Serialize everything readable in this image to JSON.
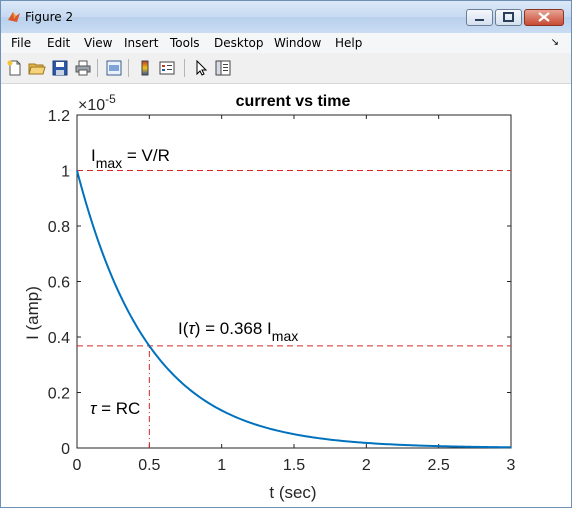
{
  "window": {
    "title": "Figure 2"
  },
  "menu": [
    "File",
    "Edit",
    "View",
    "Insert",
    "Tools",
    "Desktop",
    "Window",
    "Help"
  ],
  "toolbar_icons": [
    "new-figure-icon",
    "open-file-icon",
    "save-icon",
    "print-icon",
    "print-preview-icon",
    "colorbar-icon",
    "legend-icon",
    "pointer-icon",
    "property-editor-icon"
  ],
  "chart_data": {
    "type": "line",
    "title": "current vs time",
    "xlabel": "t (sec)",
    "ylabel": "I (amp)",
    "xlim": [
      0,
      3
    ],
    "ylim": [
      0,
      1.2
    ],
    "y_exponent_label": "×10",
    "y_exponent_power": "-5",
    "xticks": [
      "0",
      "0.5",
      "1",
      "1.5",
      "2",
      "2.5",
      "3"
    ],
    "yticks": [
      "0",
      "0.2",
      "0.4",
      "0.6",
      "0.8",
      "1",
      "1.2"
    ],
    "series": [
      {
        "color": "#0072bd",
        "time_constant": 0.5,
        "x_range": [
          0,
          3
        ],
        "formula": "I(t) = Imax·exp(-t/τ)"
      }
    ],
    "reference_lines": [
      {
        "orientation": "horizontal",
        "y": 1,
        "color": "#d62728",
        "style": "dashed"
      },
      {
        "orientation": "horizontal",
        "y": 0.368,
        "color": "#d62728",
        "style": "dashed"
      },
      {
        "orientation": "vertical",
        "x": 0.5,
        "y_to": 0.368,
        "color": "#d62728",
        "style": "dashdot"
      }
    ],
    "annotations": {
      "imax_main": "I",
      "imax_sub": "max",
      "imax_rest": " = V/R",
      "itau_main": "I(",
      "itau_tau": "τ",
      "itau_rest": ") = 0.368 I",
      "itau_sub": "max",
      "tau_symbol": "τ",
      "tau_rest": " = RC"
    },
    "grid": false,
    "box": true
  }
}
